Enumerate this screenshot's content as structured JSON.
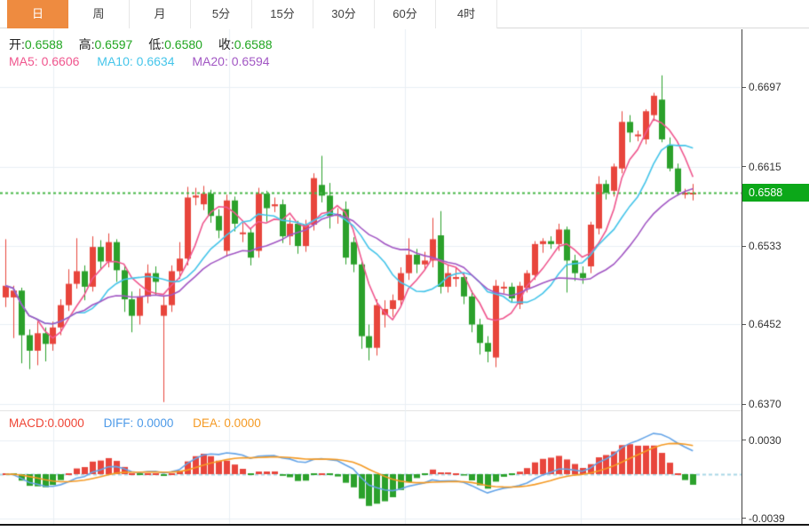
{
  "tabs": {
    "items": [
      {
        "label": "日",
        "selected": true
      },
      {
        "label": "周",
        "selected": false
      },
      {
        "label": "月",
        "selected": false
      },
      {
        "label": "5分",
        "selected": false
      },
      {
        "label": "15分",
        "selected": false
      },
      {
        "label": "30分",
        "selected": false
      },
      {
        "label": "60分",
        "selected": false
      },
      {
        "label": "4时",
        "selected": false
      }
    ]
  },
  "ohlc": {
    "open_label": "开:",
    "open": "0.6588",
    "high_label": "高:",
    "high": "0.6597",
    "low_label": "低:",
    "low": "0.6580",
    "close_label": "收:",
    "close": "0.6588"
  },
  "ma": {
    "ma5_label": "MA5:",
    "ma5": "0.6606",
    "ma10_label": "MA10:",
    "ma10": "0.6634",
    "ma20_label": "MA20:",
    "ma20": "0.6594"
  },
  "macd": {
    "macd_label": "MACD:",
    "macd": "0.0000",
    "diff_label": "DIFF:",
    "diff": "0.0000",
    "dea_label": "DEA:",
    "dea": "0.0000",
    "y_ticks": [
      {
        "label": "0.0030",
        "value": 0.003
      },
      {
        "label": "-0.0039",
        "value": -0.0039
      }
    ]
  },
  "colors": {
    "up": "#e8453c",
    "down": "#2ba12b",
    "value_green": "#21a621",
    "badge_bg": "#0ca819",
    "dotted_line": "#47b747",
    "ma5": "#f0568e",
    "ma10": "#45c5ea",
    "ma20": "#a257c4",
    "macd_label": "#ef4434",
    "diff_label": "#4d9ae8",
    "dea_label": "#f59a23",
    "diff_line": "#64a4e8",
    "dea_line": "#f59a23",
    "zero_line": "#a9d8e6",
    "grid": "#e9eff5",
    "tab_active_bg": "#ee8b40"
  },
  "chart_data": {
    "type": "candlestick",
    "title": "Daily candlestick chart with MA5/MA10/MA20 overlays and MACD panel",
    "ylim": [
      0.637,
      0.6709
    ],
    "grid": true,
    "y_ticks": [
      {
        "label": "0.6697",
        "value": 0.6697
      },
      {
        "label": "0.6615",
        "value": 0.6615
      },
      {
        "label": "0.6533",
        "value": 0.6533
      },
      {
        "label": "0.6452",
        "value": 0.6452
      },
      {
        "label": "0.6370",
        "value": 0.637
      }
    ],
    "current_price_label": "0.6588",
    "current_price": {
      "label": "0.6588",
      "value": 0.6588
    },
    "candles_format": [
      "open",
      "high",
      "low",
      "close"
    ],
    "candles": [
      [
        0.648,
        0.654,
        0.647,
        0.6492
      ],
      [
        0.648,
        0.6492,
        0.6438,
        0.6487
      ],
      [
        0.6487,
        0.649,
        0.6412,
        0.6441
      ],
      [
        0.6441,
        0.6447,
        0.6406,
        0.6425
      ],
      [
        0.6425,
        0.6455,
        0.641,
        0.6443
      ],
      [
        0.6443,
        0.6449,
        0.6414,
        0.6432
      ],
      [
        0.6432,
        0.6455,
        0.6425,
        0.6449
      ],
      [
        0.6449,
        0.6478,
        0.6441,
        0.6472
      ],
      [
        0.6472,
        0.6509,
        0.6466,
        0.6494
      ],
      [
        0.6494,
        0.6541,
        0.6489,
        0.6507
      ],
      [
        0.6507,
        0.6513,
        0.6477,
        0.6491
      ],
      [
        0.6491,
        0.6543,
        0.6486,
        0.6532
      ],
      [
        0.6532,
        0.6539,
        0.6509,
        0.6517
      ],
      [
        0.6517,
        0.6546,
        0.6511,
        0.6537
      ],
      [
        0.6537,
        0.654,
        0.6496,
        0.6508
      ],
      [
        0.6508,
        0.6512,
        0.6465,
        0.6478
      ],
      [
        0.6478,
        0.6486,
        0.6444,
        0.6461
      ],
      [
        0.6461,
        0.6489,
        0.6452,
        0.6481
      ],
      [
        0.6481,
        0.6514,
        0.6474,
        0.6505
      ],
      [
        0.6505,
        0.6512,
        0.6482,
        0.6496
      ],
      [
        0.6461,
        0.6481,
        0.6372,
        0.6472
      ],
      [
        0.6472,
        0.6513,
        0.6465,
        0.6507
      ],
      [
        0.6507,
        0.6537,
        0.6499,
        0.652
      ],
      [
        0.652,
        0.6594,
        0.6513,
        0.6583
      ],
      [
        0.6583,
        0.6593,
        0.6575,
        0.6585
      ],
      [
        0.6576,
        0.6595,
        0.657,
        0.6587
      ],
      [
        0.6587,
        0.6591,
        0.6557,
        0.6564
      ],
      [
        0.6564,
        0.6571,
        0.6541,
        0.6549
      ],
      [
        0.6528,
        0.6586,
        0.6522,
        0.658
      ],
      [
        0.658,
        0.6584,
        0.6548,
        0.6556
      ],
      [
        0.6546,
        0.6557,
        0.6537,
        0.6547
      ],
      [
        0.6547,
        0.6551,
        0.6513,
        0.6521
      ],
      [
        0.6528,
        0.6593,
        0.6521,
        0.6587
      ],
      [
        0.6587,
        0.659,
        0.6558,
        0.6572
      ],
      [
        0.6574,
        0.6583,
        0.6568,
        0.6576
      ],
      [
        0.6576,
        0.6581,
        0.6536,
        0.6543
      ],
      [
        0.6543,
        0.6562,
        0.6534,
        0.6556
      ],
      [
        0.6556,
        0.6559,
        0.6525,
        0.6533
      ],
      [
        0.6533,
        0.656,
        0.6527,
        0.6555
      ],
      [
        0.6555,
        0.6608,
        0.6549,
        0.6603
      ],
      [
        0.6596,
        0.6626,
        0.6578,
        0.6585
      ],
      [
        0.6585,
        0.6598,
        0.6551,
        0.6564
      ],
      [
        0.6564,
        0.6572,
        0.6556,
        0.6566
      ],
      [
        0.6571,
        0.6579,
        0.6514,
        0.6521
      ],
      [
        0.6537,
        0.6542,
        0.6506,
        0.6514
      ],
      [
        0.6514,
        0.6518,
        0.6427,
        0.644
      ],
      [
        0.644,
        0.6452,
        0.6415,
        0.6428
      ],
      [
        0.6428,
        0.6478,
        0.642,
        0.6472
      ],
      [
        0.6462,
        0.6477,
        0.6449,
        0.6468
      ],
      [
        0.6468,
        0.6483,
        0.646,
        0.6477
      ],
      [
        0.6477,
        0.6511,
        0.647,
        0.6505
      ],
      [
        0.6505,
        0.6541,
        0.6498,
        0.6524
      ],
      [
        0.6524,
        0.653,
        0.6505,
        0.6514
      ],
      [
        0.6514,
        0.6527,
        0.6508,
        0.6518
      ],
      [
        0.6518,
        0.6562,
        0.6511,
        0.654
      ],
      [
        0.6544,
        0.6569,
        0.6484,
        0.6491
      ],
      [
        0.6491,
        0.6513,
        0.6485,
        0.6505
      ],
      [
        0.6499,
        0.6511,
        0.6491,
        0.6501
      ],
      [
        0.6501,
        0.6505,
        0.6473,
        0.6481
      ],
      [
        0.6481,
        0.6487,
        0.6444,
        0.6452
      ],
      [
        0.6452,
        0.6458,
        0.6421,
        0.6433
      ],
      [
        0.6433,
        0.644,
        0.6413,
        0.6424
      ],
      [
        0.6418,
        0.6498,
        0.6408,
        0.6492
      ],
      [
        0.649,
        0.6496,
        0.6484,
        0.6491
      ],
      [
        0.6491,
        0.6495,
        0.6475,
        0.6479
      ],
      [
        0.6473,
        0.6496,
        0.6468,
        0.6492
      ],
      [
        0.649,
        0.6508,
        0.6485,
        0.6505
      ],
      [
        0.6503,
        0.6538,
        0.6498,
        0.6535
      ],
      [
        0.6535,
        0.6541,
        0.6526,
        0.6538
      ],
      [
        0.6538,
        0.6543,
        0.653,
        0.6535
      ],
      [
        0.6535,
        0.6556,
        0.6528,
        0.655
      ],
      [
        0.655,
        0.6553,
        0.6485,
        0.6518
      ],
      [
        0.6518,
        0.6524,
        0.6497,
        0.6505
      ],
      [
        0.6505,
        0.6512,
        0.6494,
        0.65
      ],
      [
        0.6512,
        0.6558,
        0.6505,
        0.6555
      ],
      [
        0.6551,
        0.6605,
        0.6545,
        0.6597
      ],
      [
        0.6597,
        0.6601,
        0.6581,
        0.6588
      ],
      [
        0.659,
        0.6618,
        0.6584,
        0.6615
      ],
      [
        0.6613,
        0.6672,
        0.6608,
        0.6661
      ],
      [
        0.6661,
        0.6668,
        0.664,
        0.665
      ],
      [
        0.6647,
        0.6652,
        0.6641,
        0.6648
      ],
      [
        0.6643,
        0.6674,
        0.6638,
        0.6672
      ],
      [
        0.6668,
        0.6691,
        0.6662,
        0.6688
      ],
      [
        0.6684,
        0.6709,
        0.664,
        0.6643
      ],
      [
        0.6637,
        0.6645,
        0.661,
        0.6613
      ],
      [
        0.6613,
        0.6618,
        0.6585,
        0.6589
      ],
      [
        0.6586,
        0.6592,
        0.6582,
        0.6588
      ],
      [
        0.6588,
        0.6597,
        0.658,
        0.6588
      ]
    ]
  }
}
